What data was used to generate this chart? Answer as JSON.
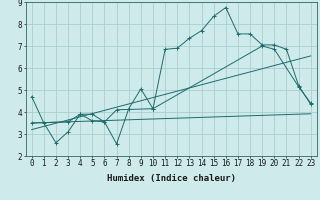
{
  "xlabel": "Humidex (Indice chaleur)",
  "background_color": "#ceeaea",
  "grid_color": "#aacfcf",
  "line_color": "#1e6b6b",
  "xlim": [
    -0.5,
    23.5
  ],
  "ylim": [
    2,
    9
  ],
  "xticks": [
    0,
    1,
    2,
    3,
    4,
    5,
    6,
    7,
    8,
    9,
    10,
    11,
    12,
    13,
    14,
    15,
    16,
    17,
    18,
    19,
    20,
    21,
    22,
    23
  ],
  "yticks": [
    2,
    3,
    4,
    5,
    6,
    7,
    8,
    9
  ],
  "series1_x": [
    0,
    1,
    2,
    3,
    4,
    5,
    6,
    7,
    8,
    9,
    10,
    11,
    12,
    13,
    14,
    15,
    16,
    17,
    18,
    19,
    20,
    21,
    22,
    23
  ],
  "series1_y": [
    4.7,
    3.5,
    2.6,
    3.1,
    3.9,
    3.9,
    3.55,
    2.55,
    4.15,
    5.05,
    4.15,
    6.85,
    6.9,
    7.35,
    7.7,
    8.35,
    8.75,
    7.55,
    7.55,
    7.05,
    7.05,
    6.85,
    5.2,
    4.35
  ],
  "series2_x": [
    0,
    3,
    4,
    5,
    6,
    7,
    10,
    19,
    20,
    22,
    23
  ],
  "series2_y": [
    3.5,
    3.55,
    3.9,
    3.6,
    3.55,
    4.1,
    4.15,
    7.0,
    6.85,
    5.15,
    4.4
  ],
  "series3_x": [
    0,
    23
  ],
  "series3_y": [
    3.2,
    6.55
  ],
  "series4_x": [
    0,
    23
  ],
  "series4_y": [
    3.5,
    3.92
  ],
  "fontsize_xlabel": 6.5,
  "fontsize_ticks": 5.5
}
